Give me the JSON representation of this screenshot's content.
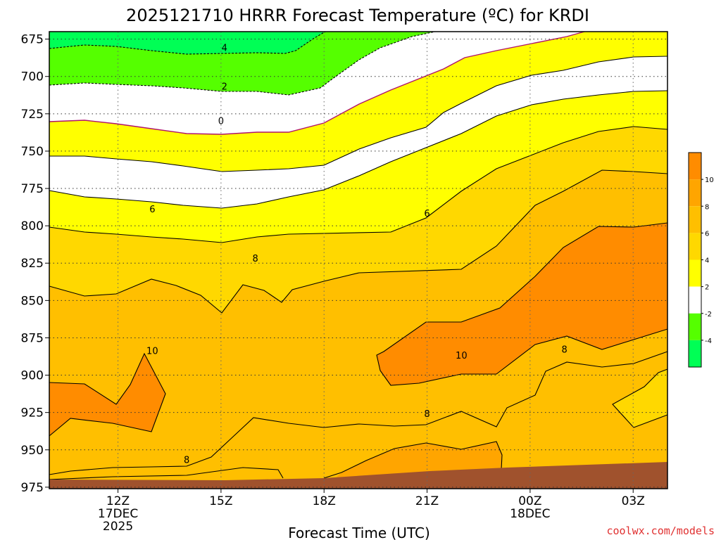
{
  "chart_data": {
    "type": "heatmap",
    "title": "2025121710 HRRR Forecast Temperature (ºC) for KRDI",
    "xlabel": "Forecast Time (UTC)",
    "ylabel": "",
    "credit": "coolwx.com/models",
    "y_axis": {
      "ticks": [
        "675",
        "700",
        "725",
        "750",
        "775",
        "800",
        "825",
        "850",
        "875",
        "900",
        "925",
        "950",
        "975"
      ],
      "values": [
        675,
        700,
        725,
        750,
        775,
        800,
        825,
        850,
        875,
        900,
        925,
        950,
        975
      ],
      "range": [
        670,
        976
      ],
      "inverted": true
    },
    "x_axis": {
      "ticks": [
        {
          "hours": 12,
          "lines": [
            "12Z",
            "17DEC",
            "2025"
          ]
        },
        {
          "hours": 15,
          "lines": [
            "15Z"
          ]
        },
        {
          "hours": 18,
          "lines": [
            "18Z"
          ]
        },
        {
          "hours": 21,
          "lines": [
            "21Z"
          ]
        },
        {
          "hours": 24,
          "lines": [
            "00Z",
            "18DEC"
          ]
        },
        {
          "hours": 27,
          "lines": [
            "03Z"
          ]
        }
      ],
      "range": [
        10,
        28
      ],
      "units": "hours from 2025-12-17 00Z"
    },
    "colorbar": {
      "ticks": [
        "10",
        "8",
        "6",
        "4",
        "2",
        "-2",
        "-4"
      ],
      "bins": [
        {
          "from": 10,
          "to": 12,
          "color": "#ff8c00"
        },
        {
          "from": 8,
          "to": 10,
          "color": "#ffa500"
        },
        {
          "from": 6,
          "to": 8,
          "color": "#ffbf00"
        },
        {
          "from": 4,
          "to": 6,
          "color": "#ffd800"
        },
        {
          "from": 2,
          "to": 4,
          "color": "#ffff00"
        },
        {
          "from": -2,
          "to": 2,
          "color": "#ffffff"
        },
        {
          "from": -4,
          "to": -2,
          "color": "#55ff00"
        },
        {
          "from": -6,
          "to": -4,
          "color": "#00ff55"
        }
      ]
    },
    "ground_color": "#a0522d",
    "contour_labels": [
      {
        "text": "4",
        "x": 15.1,
        "y": 681
      },
      {
        "text": "2",
        "x": 15.1,
        "y": 707
      },
      {
        "text": "0",
        "x": 15.0,
        "y": 730
      },
      {
        "text": "6",
        "x": 13.0,
        "y": 789
      },
      {
        "text": "6",
        "x": 21.0,
        "y": 792
      },
      {
        "text": "8",
        "x": 16.0,
        "y": 822
      },
      {
        "text": "10",
        "x": 13.0,
        "y": 884
      },
      {
        "text": "10",
        "x": 22.0,
        "y": 887
      },
      {
        "text": "8",
        "x": 25.0,
        "y": 883
      },
      {
        "text": "8",
        "x": 21.0,
        "y": 926
      },
      {
        "text": "8",
        "x": 14.0,
        "y": 957
      }
    ]
  }
}
